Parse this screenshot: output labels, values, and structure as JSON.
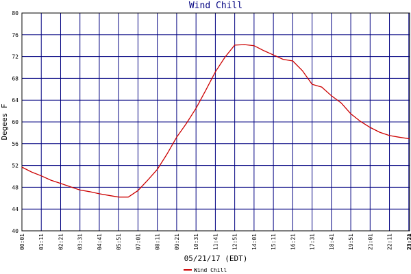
{
  "chart_data": {
    "type": "line",
    "title": "Wind Chill",
    "y_label": "Degees F",
    "x_label": "05/21/17 (EDT)",
    "xlim": [
      1,
      1404
    ],
    "ylim": [
      40,
      80
    ],
    "grid": true,
    "yticks": [
      40,
      44,
      48,
      52,
      56,
      60,
      64,
      68,
      72,
      76,
      80
    ],
    "xticks": [
      {
        "value": 1,
        "label": "00:01"
      },
      {
        "value": 71,
        "label": "01:11"
      },
      {
        "value": 141,
        "label": "02:21"
      },
      {
        "value": 211,
        "label": "03:31"
      },
      {
        "value": 281,
        "label": "04:41"
      },
      {
        "value": 351,
        "label": "05:51"
      },
      {
        "value": 421,
        "label": "07:01"
      },
      {
        "value": 491,
        "label": "08:11"
      },
      {
        "value": 561,
        "label": "09:21"
      },
      {
        "value": 631,
        "label": "10:31"
      },
      {
        "value": 701,
        "label": "11:41"
      },
      {
        "value": 771,
        "label": "12:51"
      },
      {
        "value": 841,
        "label": "14:01"
      },
      {
        "value": 911,
        "label": "15:11"
      },
      {
        "value": 981,
        "label": "16:21"
      },
      {
        "value": 1051,
        "label": "17:31"
      },
      {
        "value": 1121,
        "label": "18:41"
      },
      {
        "value": 1191,
        "label": "19:51"
      },
      {
        "value": 1261,
        "label": "21:01"
      },
      {
        "value": 1331,
        "label": "22:11"
      },
      {
        "value": 1401,
        "label": "23:21"
      },
      {
        "value": 1404,
        "label": "23:24"
      }
    ],
    "x": [
      1,
      36,
      71,
      106,
      141,
      176,
      211,
      246,
      281,
      316,
      351,
      386,
      421,
      456,
      491,
      526,
      561,
      596,
      631,
      666,
      701,
      736,
      771,
      806,
      841,
      876,
      911,
      946,
      981,
      1016,
      1051,
      1086,
      1121,
      1156,
      1191,
      1226,
      1261,
      1296,
      1331,
      1366,
      1404
    ],
    "series": [
      {
        "name": "Wind Chill",
        "color": "#cc0000",
        "values": [
          51.7,
          50.8,
          50.1,
          49.3,
          48.7,
          48.1,
          47.5,
          47.2,
          46.8,
          46.5,
          46.2,
          46.2,
          47.4,
          49.3,
          51.3,
          54.1,
          57.2,
          59.7,
          62.5,
          65.8,
          69.2,
          71.9,
          74.1,
          74.2,
          74.0,
          73.1,
          72.3,
          71.5,
          71.2,
          69.4,
          66.9,
          66.4,
          64.8,
          63.5,
          61.5,
          60.1,
          59.0,
          58.1,
          57.5,
          57.2,
          56.9
        ]
      }
    ]
  }
}
